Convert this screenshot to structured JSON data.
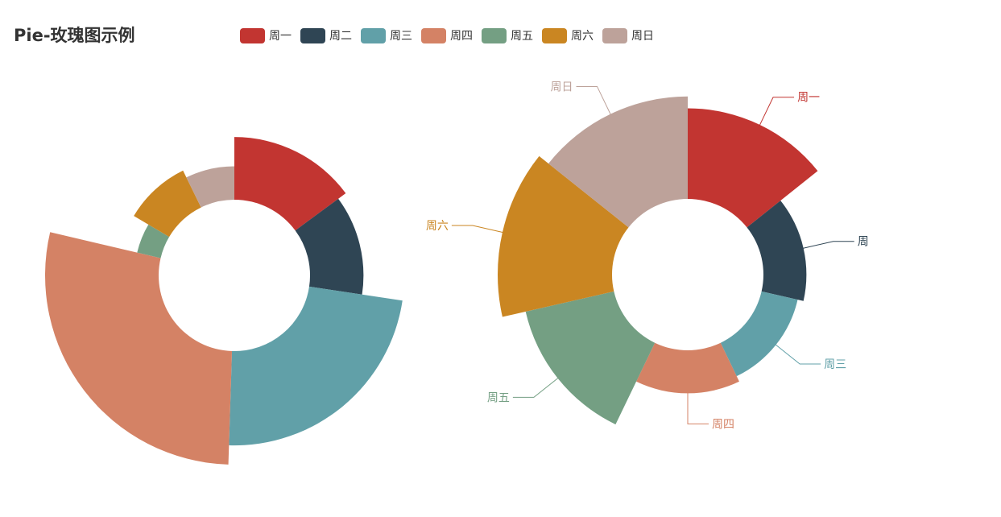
{
  "title": "Pie-玫瑰图示例",
  "legend": [
    "周一",
    "周二",
    "周三",
    "周四",
    "周五",
    "周六",
    "周日"
  ],
  "colors": [
    "#c23531",
    "#2f4554",
    "#61a0a8",
    "#d48265",
    "#749f83",
    "#ca8622",
    "#bda29a"
  ],
  "chart_data": [
    {
      "type": "pie",
      "rose_type": "radius",
      "categories": [
        "周一",
        "周二",
        "周三",
        "周四",
        "周五",
        "周六",
        "周日"
      ],
      "values": [
        74,
        62,
        115,
        140,
        24,
        46,
        36
      ]
    },
    {
      "type": "pie",
      "rose_type": "area",
      "categories": [
        "周一",
        "周二",
        "周三",
        "周四",
        "周五",
        "周六",
        "周日"
      ],
      "values": [
        95,
        55,
        50,
        55,
        95,
        115,
        105
      ],
      "labels_shown": [
        "周一",
        "周",
        "周三",
        "周四",
        "周五",
        "周六",
        "周日"
      ]
    }
  ]
}
